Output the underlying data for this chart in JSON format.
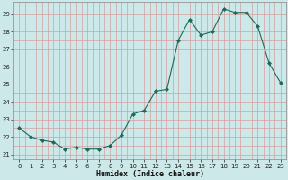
{
  "x": [
    0,
    1,
    2,
    3,
    4,
    5,
    6,
    7,
    8,
    9,
    10,
    11,
    12,
    13,
    14,
    15,
    16,
    17,
    18,
    19,
    20,
    21,
    22,
    23
  ],
  "y": [
    22.5,
    22.0,
    21.8,
    21.7,
    21.3,
    21.4,
    21.3,
    21.3,
    21.5,
    22.1,
    23.3,
    23.5,
    24.6,
    24.7,
    27.5,
    28.7,
    27.8,
    28.0,
    29.3,
    29.1,
    29.1,
    28.3,
    26.2,
    25.1
  ],
  "line_color": "#1a6b5a",
  "marker": "D",
  "marker_size": 2.0,
  "bg_color": "#cde8e8",
  "xlabel": "Humidex (Indice chaleur)",
  "ylim": [
    20.7,
    29.7
  ],
  "xlim": [
    -0.5,
    23.5
  ],
  "yticks": [
    21,
    22,
    23,
    24,
    25,
    26,
    27,
    28,
    29
  ],
  "xticks": [
    0,
    1,
    2,
    3,
    4,
    5,
    6,
    7,
    8,
    9,
    10,
    11,
    12,
    13,
    14,
    15,
    16,
    17,
    18,
    19,
    20,
    21,
    22,
    23
  ],
  "grid_color": "#d4a0a0",
  "spine_color": "#888888",
  "xlabel_fontsize": 6.0,
  "tick_fontsize": 5.0
}
